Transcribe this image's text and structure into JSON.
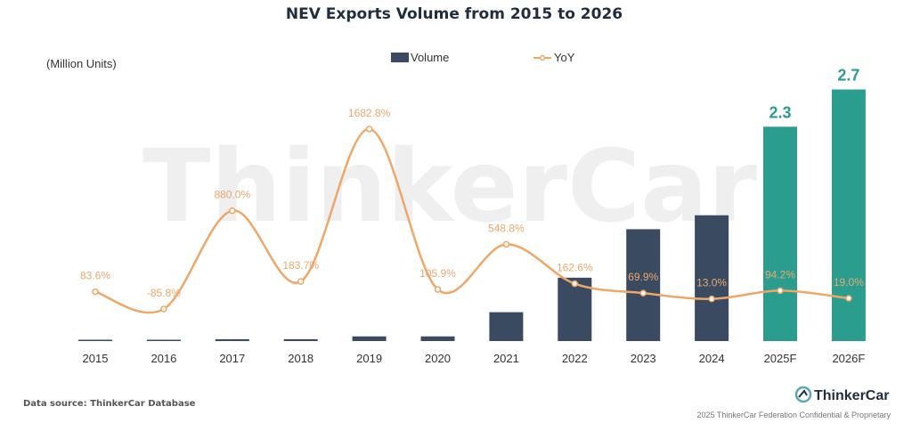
{
  "chart_data": {
    "type": "bar",
    "title": "NEV Exports Volume from 2015 to 2026",
    "unit_label": "(Million Units)",
    "categories": [
      "2015",
      "2016",
      "2017",
      "2018",
      "2019",
      "2020",
      "2021",
      "2022",
      "2023",
      "2024",
      "2025F",
      "2026F"
    ],
    "series": [
      {
        "name": "Volume",
        "type": "bar",
        "values": [
          0.01,
          0.002,
          0.02,
          0.02,
          0.05,
          0.05,
          0.31,
          0.68,
          1.2,
          1.35,
          2.3,
          2.7
        ],
        "colors": [
          "#3a4a61",
          "#3a4a61",
          "#3a4a61",
          "#3a4a61",
          "#3a4a61",
          "#3a4a61",
          "#3a4a61",
          "#3a4a61",
          "#3a4a61",
          "#3a4a61",
          "#2a9d8f",
          "#2a9d8f"
        ],
        "value_labels": [
          "",
          "",
          "",
          "",
          "",
          "",
          "",
          "",
          "",
          "",
          "2.3",
          "2.7"
        ]
      },
      {
        "name": "YoY",
        "type": "line",
        "values": [
          83.6,
          -85.8,
          880.0,
          183.7,
          1682.8,
          105.9,
          548.8,
          162.6,
          69.9,
          13.0,
          94.2,
          19.0
        ],
        "labels": [
          "83.6%",
          "-85.8%",
          "880.0%",
          "183.7%",
          "1682.8%",
          "105.9%",
          "548.8%",
          "162.6%",
          "69.9%",
          "13.0%",
          "94.2%",
          "19.0%"
        ],
        "color": "#eea766"
      }
    ],
    "ylim_volume": [
      0,
      2.8
    ],
    "ylim_yoy": [
      -200,
      1900
    ],
    "grid": false,
    "legend_position": "top-center"
  },
  "watermark": "ThinkerCar",
  "source": "Data source: ThinkerCar Database",
  "brand": "ThinkerCar",
  "footer": "2025 ThinkerCar Federation Confidential & Proprietary",
  "colors": {
    "bar_actual": "#3a4a61",
    "bar_forecast": "#2a9d8f",
    "line": "#eea766"
  }
}
